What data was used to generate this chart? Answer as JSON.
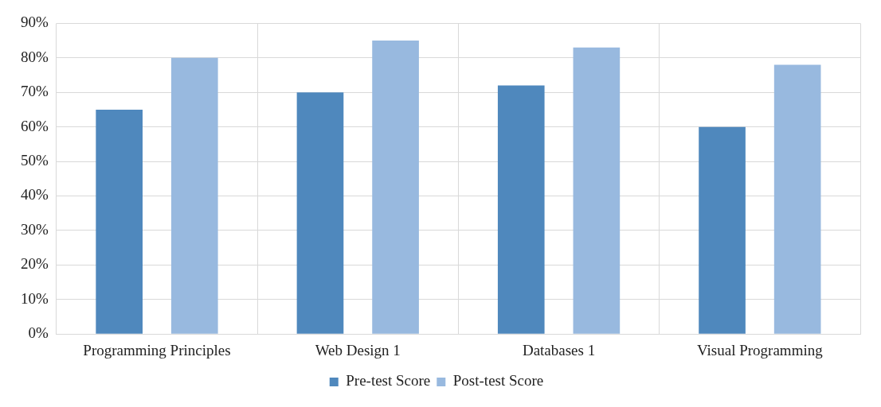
{
  "chart_data": {
    "type": "bar",
    "categories": [
      "Programming Principles",
      "Web Design 1",
      "Databases 1",
      "Visual Programming"
    ],
    "series": [
      {
        "name": "Pre-test Score",
        "color": "#4f88bd",
        "values": [
          65,
          70,
          72,
          60
        ]
      },
      {
        "name": "Post-test Score",
        "color": "#98b9df",
        "values": [
          80,
          85,
          83,
          78
        ]
      }
    ],
    "ylim": [
      0,
      90
    ],
    "yticks": [
      {
        "value": 0,
        "label": "0%"
      },
      {
        "value": 10,
        "label": "10%"
      },
      {
        "value": 20,
        "label": "20%"
      },
      {
        "value": 30,
        "label": "30%"
      },
      {
        "value": 40,
        "label": "40%"
      },
      {
        "value": 50,
        "label": "50%"
      },
      {
        "value": 60,
        "label": "60%"
      },
      {
        "value": 70,
        "label": "70%"
      },
      {
        "value": 80,
        "label": "80%"
      },
      {
        "value": 90,
        "label": "90%"
      }
    ],
    "grid": true,
    "legend": "bottom"
  }
}
